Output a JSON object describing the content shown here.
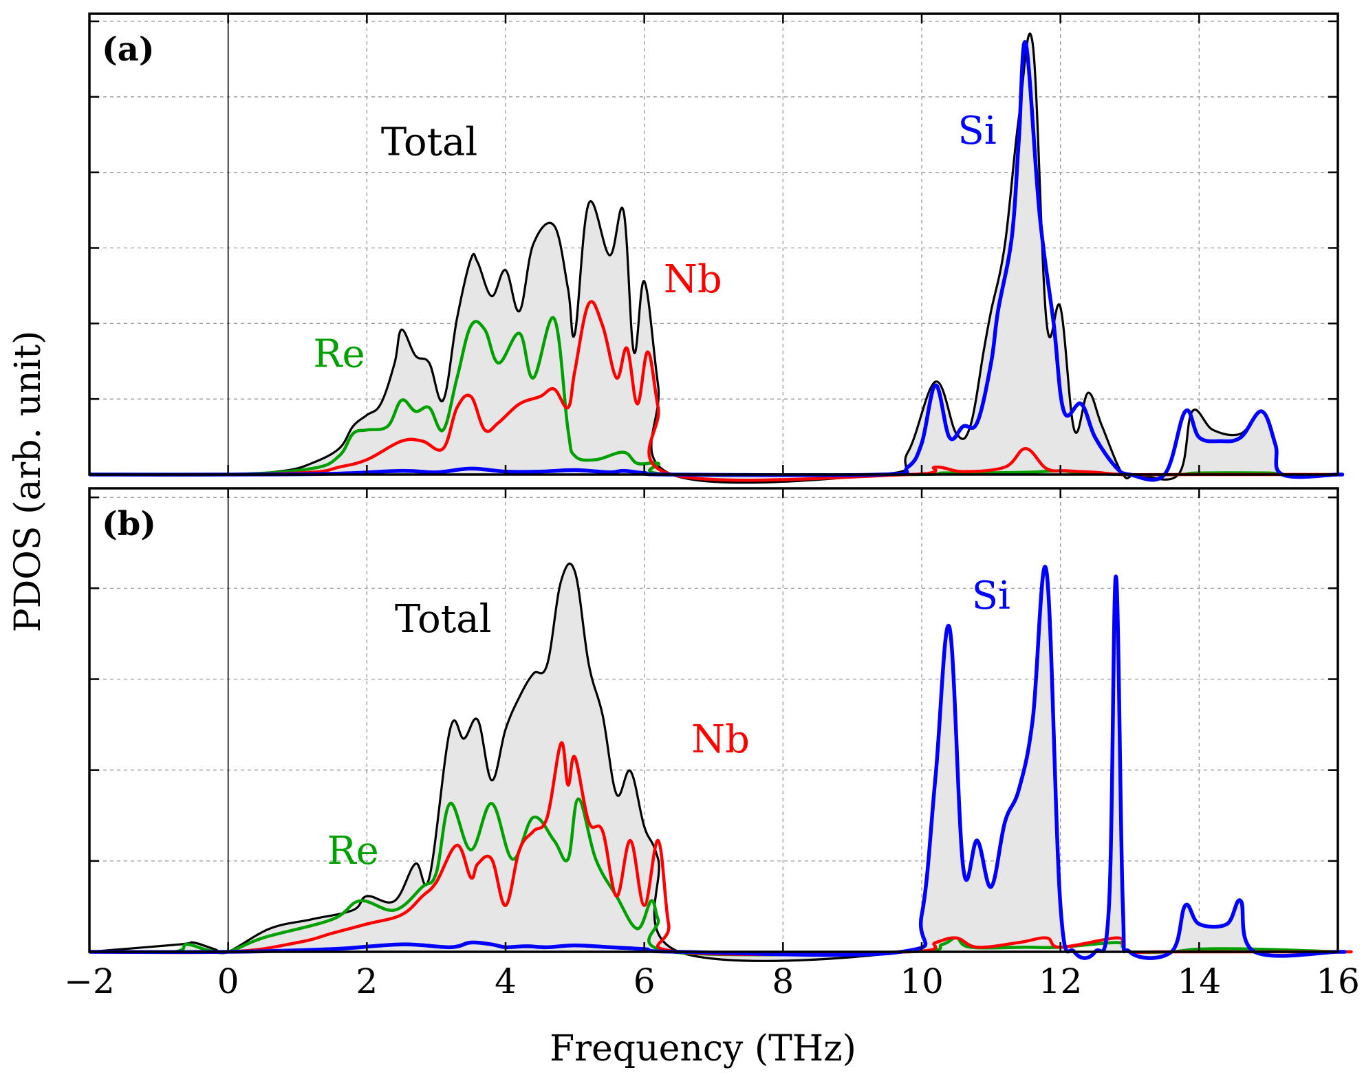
{
  "chart_data": {
    "type": "area",
    "xlabel": "Frequency (THz)",
    "ylabel": "PDOS (arb. unit)",
    "xlim": [
      -2,
      16
    ],
    "xticks": [
      -2,
      0,
      2,
      4,
      6,
      8,
      10,
      12,
      14,
      16
    ],
    "xtick_labels": [
      "−2",
      "0",
      "2",
      "4",
      "6",
      "8",
      "10",
      "12",
      "14",
      "16"
    ],
    "grid": true,
    "colors": {
      "Total": "#000000",
      "Re": "#00a000",
      "Nb": "#ff0000",
      "Si": "#0000ff",
      "fill": "#e6e6e6"
    },
    "panels": [
      {
        "panel_label": "(a)",
        "ylim": [
          0,
          6.2
        ],
        "ytick_count": 6,
        "annotations": [
          {
            "text": "Total",
            "x": 2.9,
            "y": 4.3,
            "color": "#000000"
          },
          {
            "text": "Re",
            "x": 1.6,
            "y": 1.45,
            "color": "#00a000"
          },
          {
            "text": "Nb",
            "x": 6.7,
            "y": 2.45,
            "color": "#ff0000"
          },
          {
            "text": "Si",
            "x": 10.8,
            "y": 4.45,
            "color": "#0000ff"
          }
        ],
        "series": [
          {
            "name": "Total",
            "x": [
              0,
              0.8,
              1.2,
              1.6,
              1.8,
              2.0,
              2.2,
              2.4,
              2.5,
              2.7,
              2.9,
              3.1,
              3.3,
              3.5,
              3.6,
              3.8,
              4.0,
              4.2,
              4.4,
              4.7,
              4.9,
              5.0,
              5.2,
              5.5,
              5.7,
              5.85,
              6.0,
              6.2,
              6.4,
              9.4,
              9.8,
              10.2,
              10.5,
              10.7,
              10.9,
              11.0,
              11.2,
              11.4,
              11.6,
              11.8,
              12.0,
              12.2,
              12.4,
              12.6,
              12.9,
              13.1,
              13.7,
              13.9,
              14.2,
              14.6,
              14.9,
              15.1,
              15.2,
              16
            ],
            "y": [
              0,
              0.05,
              0.15,
              0.35,
              0.65,
              0.8,
              0.95,
              1.5,
              1.95,
              1.6,
              1.5,
              1.0,
              2.1,
              2.9,
              2.85,
              2.4,
              2.75,
              2.2,
              3.1,
              3.35,
              2.5,
              1.9,
              3.65,
              2.95,
              3.55,
              1.65,
              2.6,
              1.2,
              0,
              0,
              0.3,
              1.25,
              0.55,
              0.65,
              1.7,
              2.2,
              3.1,
              4.8,
              5.8,
              2.05,
              2.25,
              0.6,
              1.1,
              0.65,
              0,
              0,
              0,
              0.85,
              0.6,
              0.55,
              0.85,
              0.4,
              0,
              0
            ]
          },
          {
            "name": "Re",
            "x": [
              0,
              1.2,
              1.6,
              1.8,
              2.0,
              2.3,
              2.5,
              2.7,
              2.9,
              3.1,
              3.3,
              3.5,
              3.7,
              3.9,
              4.2,
              4.4,
              4.7,
              4.9,
              5.0,
              5.3,
              5.7,
              5.9,
              6.2,
              6.4,
              9.8,
              10.3,
              10.7,
              11.5,
              12.0,
              12.3,
              12.9,
              13.7,
              14.0,
              15.0,
              15.2,
              16
            ],
            "y": [
              0,
              0.08,
              0.25,
              0.55,
              0.6,
              0.65,
              1.0,
              0.85,
              0.9,
              0.6,
              1.3,
              2.0,
              1.95,
              1.5,
              1.9,
              1.3,
              2.1,
              0.6,
              0.25,
              0.2,
              0.3,
              0.15,
              0.15,
              0,
              0,
              0.02,
              0.02,
              0.03,
              0.05,
              0.02,
              0,
              0,
              0.02,
              0.02,
              0,
              0
            ]
          },
          {
            "name": "Nb",
            "x": [
              0,
              1.2,
              1.6,
              2.0,
              2.5,
              2.8,
              3.1,
              3.3,
              3.5,
              3.7,
              3.9,
              4.2,
              4.5,
              4.7,
              4.9,
              5.0,
              5.2,
              5.4,
              5.6,
              5.75,
              5.9,
              6.05,
              6.2,
              6.4,
              9.8,
              10.2,
              10.6,
              11.2,
              11.5,
              11.8,
              12.1,
              12.5,
              12.9,
              13.7,
              15.2,
              16
            ],
            "y": [
              0,
              0.03,
              0.1,
              0.2,
              0.45,
              0.45,
              0.35,
              0.9,
              1.05,
              0.6,
              0.7,
              0.95,
              1.05,
              1.15,
              0.9,
              1.4,
              2.3,
              2.0,
              1.3,
              1.7,
              0.95,
              1.65,
              0.9,
              0,
              0,
              0.1,
              0.04,
              0.1,
              0.35,
              0.08,
              0.05,
              0.03,
              0,
              0,
              0,
              0
            ]
          },
          {
            "name": "Si",
            "x": [
              0,
              1.5,
              2.5,
              3.0,
              3.5,
              4.0,
              4.5,
              5.0,
              5.5,
              5.7,
              6.0,
              6.4,
              9.4,
              9.8,
              10.0,
              10.2,
              10.4,
              10.6,
              10.8,
              11.0,
              11.1,
              11.3,
              11.4,
              11.5,
              11.7,
              11.9,
              12.05,
              12.3,
              12.5,
              12.8,
              13.0,
              13.5,
              13.8,
              14.0,
              14.3,
              14.6,
              14.9,
              15.1,
              15.2,
              16
            ],
            "y": [
              0,
              0.01,
              0.05,
              0.03,
              0.08,
              0.04,
              0.04,
              0.06,
              0.03,
              0.05,
              0.02,
              0,
              0,
              0.1,
              0.42,
              1.2,
              0.5,
              0.65,
              0.7,
              1.5,
              2.2,
              3.2,
              4.5,
              5.8,
              3.5,
              2.05,
              0.85,
              0.95,
              0.5,
              0.1,
              0,
              0,
              0.85,
              0.5,
              0.45,
              0.5,
              0.85,
              0.4,
              0,
              0
            ]
          }
        ]
      },
      {
        "panel_label": "(b)",
        "ylim": [
          0,
          5.0
        ],
        "ytick_count": 5,
        "annotations": [
          {
            "text": "Total",
            "x": 3.1,
            "y": 3.45,
            "color": "#000000"
          },
          {
            "text": "Re",
            "x": 1.8,
            "y": 0.95,
            "color": "#00a000"
          },
          {
            "text": "Nb",
            "x": 7.1,
            "y": 2.15,
            "color": "#ff0000"
          },
          {
            "text": "Si",
            "x": 11.0,
            "y": 3.7,
            "color": "#0000ff"
          }
        ],
        "series": [
          {
            "name": "Total",
            "x": [
              -0.7,
              -0.5,
              -0.2,
              0,
              0.6,
              1.2,
              1.8,
              2.0,
              2.4,
              2.7,
              2.9,
              3.2,
              3.4,
              3.6,
              3.8,
              4.0,
              4.2,
              4.4,
              4.6,
              4.8,
              5.0,
              5.2,
              5.4,
              5.6,
              5.8,
              6.0,
              6.2,
              6.5,
              9.7,
              10.0,
              10.2,
              10.4,
              10.6,
              10.8,
              11.0,
              11.2,
              11.4,
              11.6,
              11.8,
              12.0,
              12.2,
              12.5,
              12.7,
              12.8,
              12.9,
              13.0,
              13.6,
              13.8,
              14.0,
              14.4,
              14.6,
              14.8,
              16
            ],
            "y": [
              0.08,
              0.1,
              0.03,
              0,
              0.25,
              0.35,
              0.45,
              0.6,
              0.55,
              0.95,
              0.8,
              2.4,
              2.3,
              2.5,
              1.85,
              2.4,
              2.75,
              3.0,
              3.1,
              4.0,
              4.1,
              3.1,
              2.55,
              1.7,
              1.95,
              1.35,
              1.0,
              0,
              0,
              0.4,
              1.9,
              3.5,
              0.9,
              1.2,
              0.7,
              1.4,
              1.75,
              2.5,
              4.1,
              0.5,
              0,
              0,
              0.5,
              4.05,
              0.5,
              0,
              0,
              0.5,
              0.3,
              0.3,
              0.55,
              0,
              0
            ]
          },
          {
            "name": "Re",
            "x": [
              -0.8,
              -0.6,
              -0.3,
              0,
              0.5,
              1.5,
              1.9,
              2.4,
              2.8,
              3.0,
              3.2,
              3.5,
              3.8,
              4.1,
              4.4,
              4.7,
              4.9,
              5.05,
              5.3,
              5.6,
              5.9,
              6.1,
              6.2,
              6.4,
              9.8,
              10.3,
              10.5,
              10.7,
              11.5,
              12.0,
              12.8,
              12.9,
              13.0,
              13.6,
              14.0,
              14.8,
              16
            ],
            "y": [
              0.0,
              0.08,
              0.02,
              0,
              0.15,
              0.35,
              0.55,
              0.45,
              0.7,
              0.85,
              1.6,
              1.1,
              1.6,
              1.0,
              1.45,
              1.2,
              1.0,
              1.65,
              1.0,
              0.6,
              0.25,
              0.55,
              0.35,
              0,
              0,
              0.08,
              0.15,
              0.05,
              0.05,
              0.05,
              0.1,
              0.05,
              0,
              0,
              0.03,
              0.03,
              0
            ]
          },
          {
            "name": "Nb",
            "x": [
              0,
              1.0,
              1.5,
              2.0,
              2.5,
              2.8,
              3.0,
              3.3,
              3.5,
              3.6,
              3.8,
              4.0,
              4.2,
              4.4,
              4.6,
              4.8,
              4.9,
              5.0,
              5.2,
              5.4,
              5.6,
              5.8,
              6.0,
              6.2,
              6.35,
              6.5,
              9.8,
              10.2,
              10.5,
              10.8,
              11.4,
              11.8,
              12.0,
              12.8,
              12.9,
              13.0,
              13.6,
              16
            ],
            "y": [
              0,
              0.1,
              0.2,
              0.3,
              0.4,
              0.6,
              0.75,
              1.15,
              0.8,
              0.95,
              1.0,
              0.5,
              1.1,
              1.3,
              1.45,
              2.25,
              1.8,
              2.1,
              1.4,
              1.3,
              0.6,
              1.2,
              0.5,
              1.2,
              0.3,
              0,
              0,
              0.1,
              0.15,
              0.05,
              0.1,
              0.15,
              0.05,
              0.15,
              0.08,
              0,
              0,
              0
            ]
          },
          {
            "name": "Si",
            "x": [
              0,
              1.5,
              2.5,
              3.2,
              3.5,
              3.8,
              4.0,
              4.3,
              4.6,
              5.0,
              5.5,
              6.0,
              6.5,
              9.7,
              10.0,
              10.2,
              10.4,
              10.6,
              10.8,
              11.0,
              11.2,
              11.4,
              11.6,
              11.8,
              12.0,
              12.2,
              12.5,
              12.7,
              12.8,
              12.9,
              13.0,
              13.6,
              13.8,
              14.0,
              14.4,
              14.6,
              14.8,
              16
            ],
            "y": [
              0,
              0.03,
              0.08,
              0.05,
              0.1,
              0.08,
              0.05,
              0.06,
              0.05,
              0.07,
              0.05,
              0.03,
              0,
              0,
              0.4,
              1.9,
              3.5,
              0.9,
              1.2,
              0.7,
              1.4,
              1.75,
              2.5,
              4.1,
              0.5,
              0,
              0,
              0.5,
              4.05,
              0.5,
              0,
              0,
              0.5,
              0.3,
              0.3,
              0.55,
              0,
              0
            ]
          }
        ]
      }
    ]
  }
}
